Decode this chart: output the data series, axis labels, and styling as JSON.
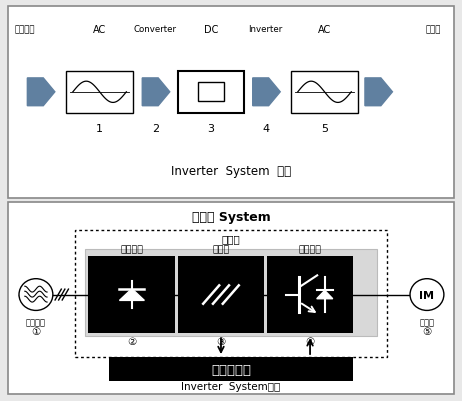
{
  "top_labels": [
    "상용전원",
    "AC",
    "Converter",
    "DC",
    "Inverter",
    "AC",
    "전동기"
  ],
  "top_numbers": [
    "1",
    "2",
    "3",
    "4",
    "5"
  ],
  "top_caption": "Inverter  System  개념",
  "bottom_title": "인버터 System",
  "bottom_subtitle": "주회로",
  "bottom_boxes": [
    "컨버터부",
    "평활부",
    "인버터부"
  ],
  "bottom_left_label": "상용전원",
  "bottom_right_label": "전동기",
  "bottom_circled": [
    "①",
    "②",
    "③",
    "④",
    "⑤"
  ],
  "bottom_control": "제어회로부",
  "bottom_caption": "Inverter  System구성",
  "arrow_color": "#6080a0",
  "panel_bg": "white",
  "fig_bg": "#e8e8e8"
}
